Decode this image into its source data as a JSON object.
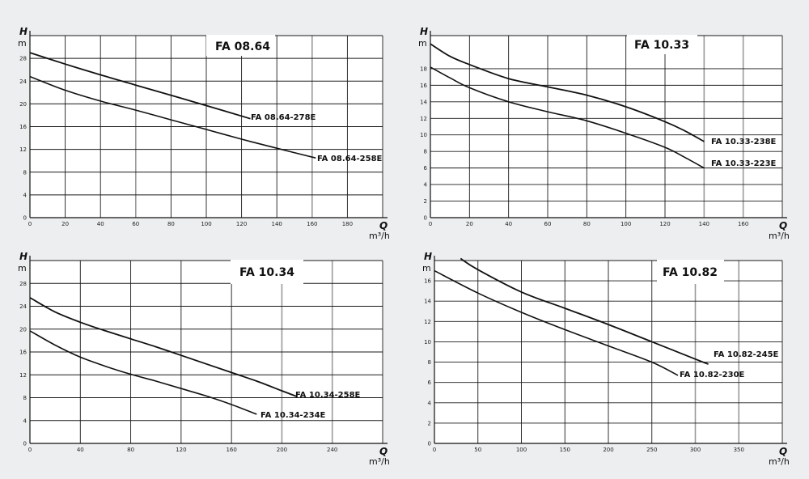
{
  "chart_data": [
    {
      "type": "line",
      "title": "FA 08.64",
      "ylabel_symbol": "H",
      "ylabel_unit": "m",
      "xlabel_symbol": "Q",
      "xlabel_unit": "m³/h",
      "xlim": [
        0,
        200
      ],
      "ylim": [
        0,
        32
      ],
      "xticks": [
        0,
        20,
        40,
        60,
        80,
        100,
        120,
        140,
        160,
        180
      ],
      "yticks": [
        0,
        4,
        8,
        12,
        16,
        20,
        24,
        28
      ],
      "grid": true,
      "series": [
        {
          "name": "FA 08.64-278E",
          "x": [
            0,
            20,
            40,
            60,
            80,
            100,
            125
          ],
          "y": [
            29,
            27,
            25.1,
            23.3,
            21.5,
            19.7,
            17.4
          ]
        },
        {
          "name": "FA 08.64-258E",
          "x": [
            0,
            20,
            40,
            60,
            80,
            100,
            120,
            140,
            162
          ],
          "y": [
            24.8,
            22.4,
            20.5,
            18.9,
            17.2,
            15.5,
            13.8,
            12.2,
            10.5
          ]
        }
      ]
    },
    {
      "type": "line",
      "title": "FA 10.33",
      "ylabel_symbol": "H",
      "ylabel_unit": "m",
      "xlabel_symbol": "Q",
      "xlabel_unit": "m³/h",
      "xlim": [
        0,
        180
      ],
      "ylim": [
        0,
        22
      ],
      "xticks": [
        0,
        20,
        40,
        60,
        80,
        100,
        120,
        140,
        160
      ],
      "yticks": [
        0,
        2,
        4,
        6,
        8,
        10,
        12,
        14,
        16,
        18
      ],
      "grid": true,
      "series": [
        {
          "name": "FA 10.33-238E",
          "x": [
            0,
            10,
            20,
            40,
            60,
            80,
            100,
            120,
            130,
            140
          ],
          "y": [
            21,
            19.5,
            18.5,
            16.8,
            15.8,
            14.8,
            13.4,
            11.6,
            10.5,
            9.2
          ]
        },
        {
          "name": "FA 10.33-223E",
          "x": [
            0,
            10,
            20,
            40,
            60,
            80,
            100,
            120,
            130,
            140
          ],
          "y": [
            18.2,
            16.9,
            15.7,
            14,
            12.8,
            11.7,
            10.2,
            8.5,
            7.3,
            6
          ]
        }
      ]
    },
    {
      "type": "line",
      "title": "FA 10.34",
      "ylabel_symbol": "H",
      "ylabel_unit": "m",
      "xlabel_symbol": "Q",
      "xlabel_unit": "m³/h",
      "xlim": [
        0,
        280
      ],
      "ylim": [
        0,
        32
      ],
      "xticks": [
        0,
        40,
        80,
        120,
        160,
        200,
        240
      ],
      "yticks": [
        0,
        4,
        8,
        12,
        16,
        20,
        24,
        28
      ],
      "grid": true,
      "series": [
        {
          "name": "FA 10.34-258E",
          "x": [
            0,
            20,
            40,
            60,
            80,
            100,
            120,
            140,
            160,
            180,
            200,
            212
          ],
          "y": [
            25.5,
            23,
            21.2,
            19.7,
            18.3,
            16.9,
            15.4,
            13.9,
            12.4,
            10.9,
            9.2,
            8.2
          ]
        },
        {
          "name": "FA 10.34-234E",
          "x": [
            0,
            20,
            40,
            60,
            80,
            100,
            120,
            140,
            160,
            180
          ],
          "y": [
            19.7,
            17.2,
            15.1,
            13.5,
            12.1,
            10.9,
            9.6,
            8.3,
            6.8,
            5.1
          ]
        }
      ]
    },
    {
      "type": "line",
      "title": "FA 10.82",
      "ylabel_symbol": "H",
      "ylabel_unit": "m",
      "xlabel_symbol": "Q",
      "xlabel_unit": "m³/h",
      "xlim": [
        0,
        400
      ],
      "ylim": [
        0,
        18
      ],
      "xticks": [
        0,
        50,
        100,
        150,
        200,
        250,
        300,
        350
      ],
      "yticks": [
        0,
        2,
        4,
        6,
        8,
        10,
        12,
        14,
        16
      ],
      "grid": true,
      "series": [
        {
          "name": "FA 10.82-245E",
          "x": [
            30,
            50,
            100,
            150,
            200,
            250,
            300,
            315
          ],
          "y": [
            18.2,
            17.1,
            14.9,
            13.3,
            11.7,
            10,
            8.3,
            7.8
          ]
        },
        {
          "name": "FA 10.82-230E",
          "x": [
            0,
            50,
            100,
            150,
            200,
            250,
            280
          ],
          "y": [
            17,
            14.8,
            12.9,
            11.2,
            9.6,
            8,
            6.7
          ]
        }
      ]
    }
  ]
}
